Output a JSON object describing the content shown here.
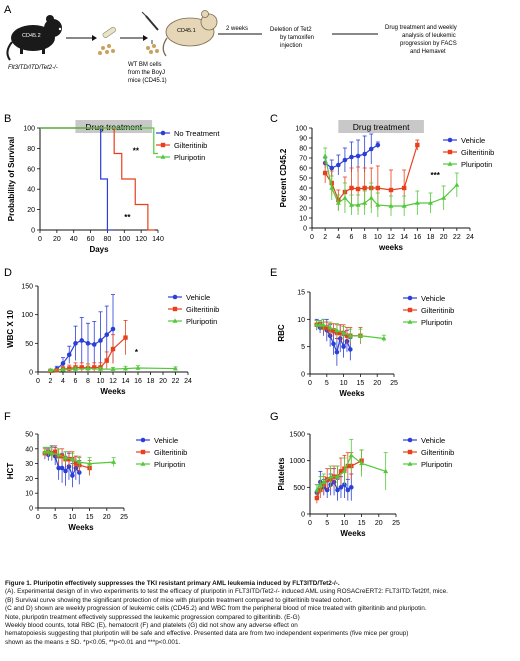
{
  "panel_a": {
    "letter": "A",
    "mouse1_label": "CD45.2",
    "genotype": "Flt3ITD/ITD/Tet2-/-",
    "step_weeks": "2 weeks",
    "donor_label": "CD45.1",
    "bm_text": [
      "WT BM cells",
      "from the BoyJ",
      "mice (CD45.1)"
    ],
    "deletion_text": [
      "Deletion of Tet2",
      "by tamoxifen",
      "injection"
    ],
    "treatment_text": [
      "Drug treatment and weekly",
      "analysis of leukemic",
      "progression by FACS",
      "and Hemavet"
    ]
  },
  "colors": {
    "vehicle": "#2b3fd6",
    "gilteritinib": "#e8401c",
    "pluripotin": "#52c93a",
    "drugbar": "#c8c8c8"
  },
  "chart_data": [
    {
      "panel": "B",
      "type": "line",
      "step": true,
      "xlabel": "Days",
      "ylabel": "Probability of Survival",
      "xlim": [
        0,
        140
      ],
      "ylim": [
        0,
        100
      ],
      "xticks": [
        0,
        20,
        40,
        60,
        80,
        100,
        120,
        140
      ],
      "yticks": [
        0,
        20,
        40,
        60,
        80,
        100
      ],
      "drug_bar": {
        "label": "Drug treatment",
        "from": 42,
        "to": 133
      },
      "legend": "top-right",
      "annotations": [
        {
          "text": "**",
          "x": 110,
          "y": 75
        },
        {
          "text": "**",
          "x": 100,
          "y": 10
        }
      ],
      "series": [
        {
          "name": "No Treatment",
          "key": "vehicle",
          "x": [
            0,
            72,
            72,
            80,
            80,
            87
          ],
          "y": [
            100,
            100,
            50,
            50,
            0,
            0
          ]
        },
        {
          "name": "Gilteritinib",
          "key": "gilteritinib",
          "x": [
            0,
            88,
            88,
            97,
            97,
            113,
            113,
            128,
            128,
            136
          ],
          "y": [
            100,
            100,
            75,
            75,
            50,
            50,
            25,
            25,
            0,
            0
          ]
        },
        {
          "name": "Pluripotin",
          "key": "pluripotin",
          "x": [
            0,
            135,
            135,
            140
          ],
          "y": [
            100,
            100,
            75,
            75
          ]
        }
      ]
    },
    {
      "panel": "C",
      "type": "line",
      "xlabel": "weeks",
      "ylabel": "Percent CD45.2",
      "xlim": [
        0,
        24
      ],
      "ylim": [
        0,
        100
      ],
      "xticks": [
        0,
        2,
        4,
        6,
        8,
        10,
        12,
        14,
        16,
        18,
        20,
        22,
        24
      ],
      "yticks": [
        0,
        10,
        20,
        30,
        40,
        50,
        60,
        70,
        80,
        90,
        100
      ],
      "drug_bar": {
        "label": "Drug treatment",
        "from": 4,
        "to": 17
      },
      "legend": "top-right",
      "annotations": [
        {
          "text": "***",
          "x": 18,
          "y": 50
        }
      ],
      "series": [
        {
          "name": "Vehicle",
          "key": "vehicle",
          "x": [
            2,
            3,
            4,
            5,
            6,
            7,
            8,
            9,
            10
          ],
          "y": [
            65,
            60,
            63,
            68,
            71,
            72,
            74,
            79,
            83
          ],
          "err": [
            5,
            8,
            10,
            12,
            15,
            16,
            18,
            15,
            3
          ]
        },
        {
          "name": "Gilteritinib",
          "key": "gilteritinib",
          "x": [
            2,
            3,
            4,
            5,
            6,
            7,
            8,
            9,
            10,
            12,
            14,
            16
          ],
          "y": [
            55,
            45,
            28,
            36,
            40,
            39,
            40,
            40,
            40,
            38,
            40,
            83
          ],
          "err": [
            10,
            12,
            10,
            15,
            20,
            22,
            20,
            20,
            22,
            20,
            18,
            5
          ]
        },
        {
          "name": "Pluripotin",
          "key": "pluripotin",
          "x": [
            2,
            3,
            4,
            5,
            6,
            7,
            8,
            9,
            10,
            12,
            14,
            16,
            18,
            20,
            22
          ],
          "y": [
            72,
            40,
            25,
            30,
            23,
            23,
            25,
            30,
            23,
            22,
            22,
            25,
            25,
            30,
            43
          ],
          "err": [
            8,
            12,
            8,
            15,
            10,
            10,
            12,
            15,
            12,
            10,
            10,
            12,
            10,
            12,
            12
          ]
        }
      ]
    },
    {
      "panel": "D",
      "type": "line",
      "xlabel": "Weeks",
      "ylabel": "WBC X 10",
      "xlim": [
        0,
        24
      ],
      "ylim": [
        0,
        150
      ],
      "xticks": [
        0,
        2,
        4,
        6,
        8,
        10,
        12,
        14,
        16,
        18,
        20,
        22,
        24
      ],
      "yticks": [
        0,
        50,
        100,
        150
      ],
      "legend": "top-right",
      "annotations": [
        {
          "text": "*",
          "x": 15.5,
          "y": 30
        }
      ],
      "series": [
        {
          "name": "Vehicle",
          "key": "vehicle",
          "x": [
            2,
            3,
            4,
            5,
            6,
            7,
            8,
            9,
            10,
            11,
            12
          ],
          "y": [
            2,
            5,
            15,
            30,
            50,
            55,
            50,
            48,
            55,
            65,
            75
          ],
          "err": [
            2,
            5,
            10,
            15,
            30,
            40,
            35,
            40,
            50,
            50,
            60
          ]
        },
        {
          "name": "Gilteritinib",
          "key": "gilteritinib",
          "x": [
            2,
            3,
            4,
            5,
            6,
            7,
            8,
            9,
            10,
            11,
            12,
            14
          ],
          "y": [
            2,
            3,
            5,
            6,
            8,
            8,
            7,
            8,
            8,
            20,
            40,
            60
          ],
          "err": [
            2,
            3,
            5,
            6,
            8,
            8,
            7,
            8,
            8,
            15,
            25,
            30
          ]
        },
        {
          "name": "Pluripotin",
          "key": "pluripotin",
          "x": [
            2,
            4,
            6,
            8,
            10,
            12,
            14,
            16,
            22
          ],
          "y": [
            3,
            4,
            5,
            6,
            5,
            5,
            6,
            7,
            6
          ],
          "err": [
            2,
            3,
            4,
            4,
            3,
            3,
            4,
            4,
            3
          ]
        }
      ]
    },
    {
      "panel": "E",
      "type": "line",
      "xlabel": "Weeks",
      "ylabel": "RBC",
      "xlim": [
        0,
        25
      ],
      "ylim": [
        0,
        15
      ],
      "xticks": [
        0,
        5,
        10,
        15,
        20,
        25
      ],
      "yticks": [
        0,
        5,
        10,
        15
      ],
      "legend": "top-right",
      "series": [
        {
          "name": "Vehicle",
          "key": "vehicle",
          "x": [
            2,
            3,
            4,
            5,
            6,
            7,
            8,
            9,
            10,
            11,
            12
          ],
          "y": [
            9,
            8.5,
            8.5,
            8,
            7,
            5.5,
            4,
            6.5,
            5,
            6,
            4.5
          ],
          "err": [
            1,
            1,
            1.5,
            2,
            2,
            2,
            2.5,
            2.5,
            2,
            2,
            2
          ]
        },
        {
          "name": "Gilteritinib",
          "key": "gilteritinib",
          "x": [
            2,
            3,
            4,
            5,
            6,
            7,
            8,
            9,
            10,
            11,
            12,
            15
          ],
          "y": [
            9,
            9,
            8.5,
            8.5,
            8,
            8,
            7.5,
            7.5,
            7.5,
            7,
            7,
            7
          ],
          "err": [
            0.8,
            0.8,
            1,
            1,
            1.2,
            1.2,
            1.5,
            1.5,
            1.5,
            1.5,
            1.5,
            1.5
          ]
        },
        {
          "name": "Pluripotin",
          "key": "pluripotin",
          "x": [
            2,
            3,
            4,
            6,
            8,
            10,
            12,
            15,
            22
          ],
          "y": [
            9,
            9,
            9,
            8.5,
            8,
            7.5,
            7,
            7,
            6.5
          ],
          "err": [
            0.8,
            0.8,
            1,
            1,
            1.2,
            1.2,
            1.2,
            1.2,
            0.6
          ]
        }
      ]
    },
    {
      "panel": "F",
      "type": "line",
      "xlabel": "Weeks",
      "ylabel": "HCT",
      "xlim": [
        0,
        25
      ],
      "ylim": [
        0,
        50
      ],
      "xticks": [
        0,
        5,
        10,
        15,
        20,
        25
      ],
      "yticks": [
        0,
        10,
        20,
        30,
        40,
        50
      ],
      "legend": "top-right",
      "series": [
        {
          "name": "Vehicle",
          "key": "vehicle",
          "x": [
            2,
            3,
            4,
            5,
            6,
            7,
            8,
            9,
            10,
            11,
            12
          ],
          "y": [
            37,
            36,
            37,
            35,
            27,
            27,
            25,
            28,
            22,
            27,
            24
          ],
          "err": [
            4,
            4,
            5,
            6,
            8,
            10,
            10,
            9,
            8,
            8,
            8
          ]
        },
        {
          "name": "Gilteritinib",
          "key": "gilteritinib",
          "x": [
            2,
            3,
            4,
            5,
            6,
            7,
            8,
            9,
            10,
            11,
            12,
            15
          ],
          "y": [
            37,
            38,
            37,
            38,
            35,
            35,
            33,
            33,
            33,
            30,
            29,
            27
          ],
          "err": [
            3,
            3,
            4,
            4,
            5,
            5,
            5,
            5,
            5,
            5,
            5,
            5
          ]
        },
        {
          "name": "Pluripotin",
          "key": "pluripotin",
          "x": [
            2,
            3,
            4,
            6,
            8,
            10,
            12,
            15,
            22
          ],
          "y": [
            38,
            38,
            37,
            36,
            34,
            33,
            31,
            30,
            31
          ],
          "err": [
            3,
            3,
            4,
            4,
            4,
            4,
            4,
            4,
            3
          ]
        }
      ]
    },
    {
      "panel": "G",
      "type": "line",
      "xlabel": "Weeks",
      "ylabel": "Platelets",
      "xlim": [
        0,
        25
      ],
      "ylim": [
        0,
        1500
      ],
      "xticks": [
        0,
        5,
        10,
        15,
        20,
        25
      ],
      "yticks": [
        0,
        500,
        1000,
        1500
      ],
      "legend": "top-right",
      "series": [
        {
          "name": "Vehicle",
          "key": "vehicle",
          "x": [
            2,
            3,
            4,
            5,
            6,
            7,
            8,
            9,
            10,
            11,
            12
          ],
          "y": [
            400,
            600,
            500,
            450,
            550,
            600,
            450,
            500,
            550,
            450,
            500
          ],
          "err": [
            150,
            200,
            150,
            150,
            200,
            250,
            200,
            200,
            250,
            200,
            250
          ]
        },
        {
          "name": "Gilteritinib",
          "key": "gilteritinib",
          "x": [
            2,
            3,
            4,
            5,
            6,
            7,
            8,
            9,
            10,
            11,
            12,
            15
          ],
          "y": [
            300,
            450,
            550,
            650,
            650,
            700,
            700,
            800,
            850,
            900,
            900,
            1000
          ],
          "err": [
            100,
            150,
            150,
            200,
            200,
            200,
            200,
            250,
            250,
            250,
            250,
            200
          ]
        },
        {
          "name": "Pluripotin",
          "key": "pluripotin",
          "x": [
            2,
            3,
            4,
            6,
            8,
            10,
            12,
            15,
            22
          ],
          "y": [
            450,
            550,
            600,
            700,
            700,
            800,
            1100,
            950,
            800
          ],
          "err": [
            100,
            150,
            150,
            200,
            200,
            250,
            300,
            250,
            350
          ]
        }
      ]
    }
  ],
  "caption": {
    "title": "Figure 1. Pluripotin effectively suppresses the TKI resistant primary AML leukemia induced by FLT3ITD/Tet2-/-.",
    "lines": [
      "(A). Experimental design of in vivo experiments to test the efficacy of pluripotin in FLT3ITD/Tet2-/- induced AML using ROSACreERT2: FLT3ITD:Tet2f/f, mice.",
      "(B) Survival curve showing the significant protection of mice with pluripotin treatment compared to gilteritinib treated cohort.",
      "(C and D) shown are weekly progression of leukemic cells (CD45.2) and WBC from the peripheral blood of mice treated with gilteritinib and pluripotin.",
      "Note, pluripotin treatment effectively suppressed the leukemic progression compared to gilteritinib. (E-G)",
      "Weekly blood counts, total RBC (E), hematocrit (F) and platelets (G) did not show any adverse effect on",
      " hematopoiesis suggesting that pluripotin will be safe and effective.   Presented data are from two independent experiments (five mice per group)",
      "shown as the means ± SD.  *p<0.05, **p<0.01 and ***p<0.001."
    ]
  }
}
